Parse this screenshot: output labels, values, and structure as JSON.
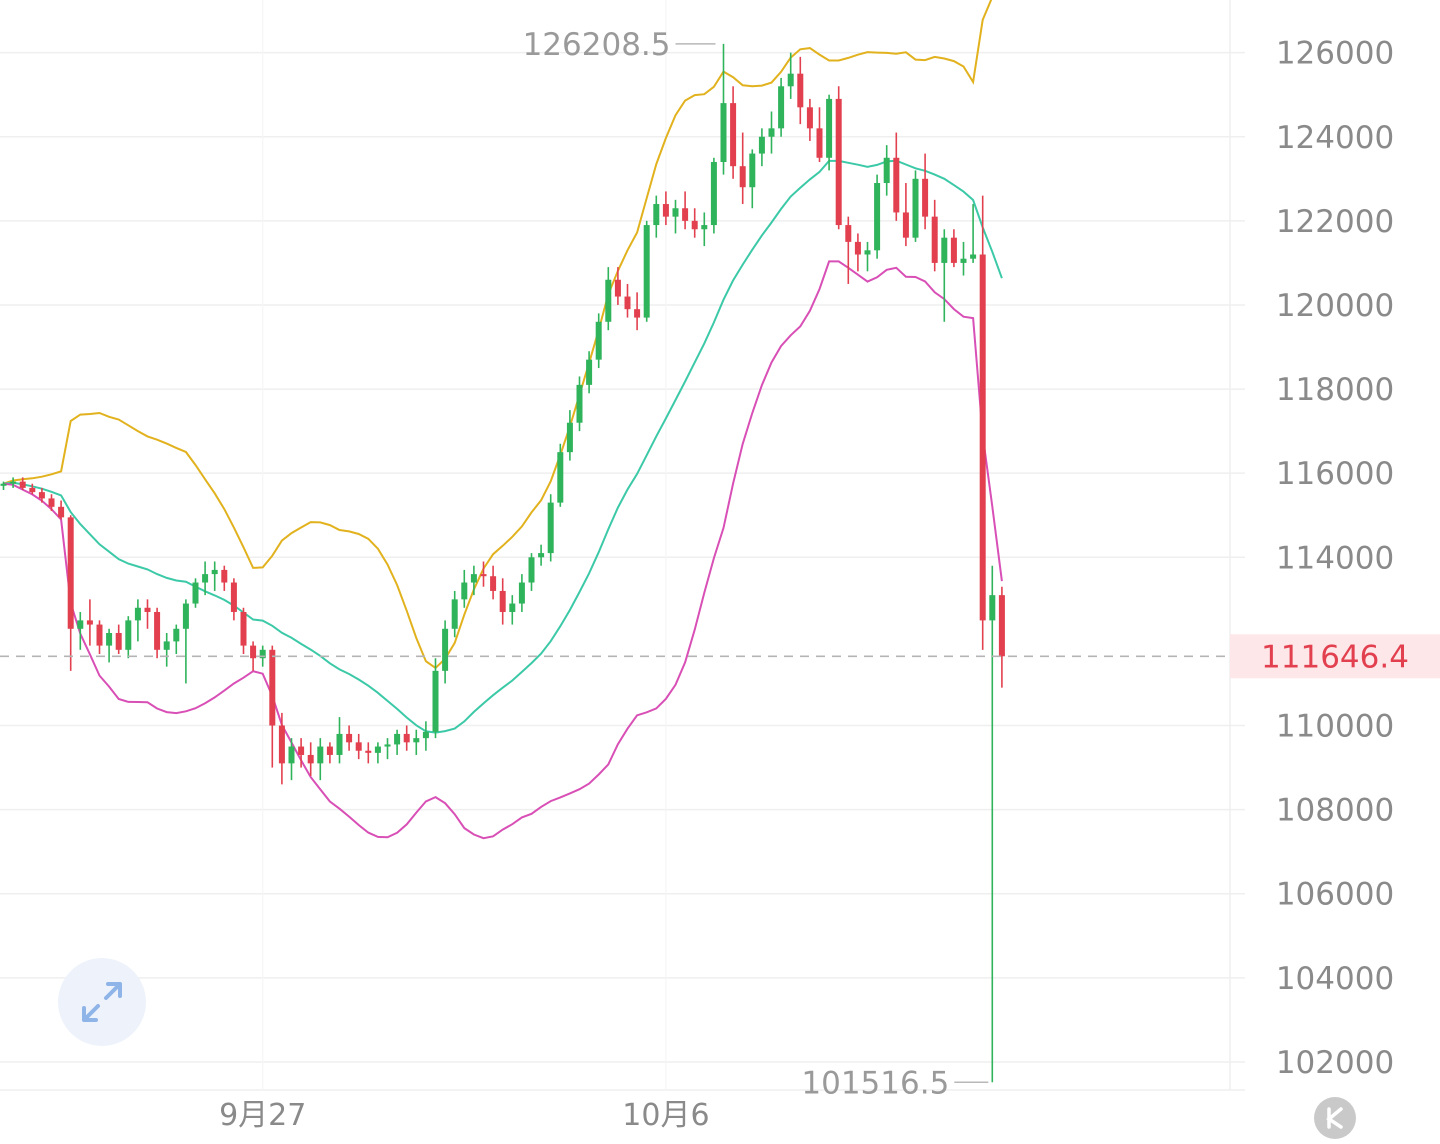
{
  "chart_data": {
    "type": "candlestick",
    "series": [
      {
        "name": "",
        "values": []
      }
    ],
    "y_range": [
      101000,
      126800
    ],
    "y_ticks": [
      "126000",
      "124000",
      "122000",
      "120000",
      "118000",
      "116000",
      "114000",
      "110000",
      "108000",
      "106000",
      "104000",
      "102000"
    ],
    "x_tick_labels": [
      {
        "label": "9月27",
        "index": 27
      },
      {
        "label": "10月6",
        "index": 69
      }
    ],
    "current_price": 111646.4,
    "high_marker": 126208.5,
    "high_marker_label": "126208.5",
    "low_marker": 101516.5,
    "low_marker_label": "101516.5",
    "current_price_label": "111646.4",
    "grid": true,
    "colors": {
      "up": "#2fb35b",
      "down": "#e2404f",
      "bb_upper": "#e2b21e",
      "bb_middle": "#3cc9a7",
      "bb_lower": "#d84fb6",
      "grid": "#efefef",
      "current_line": "#b4b4b4",
      "price_tag_bg": "#fde7e9"
    },
    "candles": [
      [
        115700,
        115800,
        115600,
        115750
      ],
      [
        115750,
        115900,
        115650,
        115800
      ],
      [
        115800,
        115900,
        115600,
        115650
      ],
      [
        115650,
        115750,
        115500,
        115550
      ],
      [
        115550,
        115650,
        115300,
        115400
      ],
      [
        115400,
        115500,
        115100,
        115200
      ],
      [
        115200,
        115350,
        114900,
        114950
      ],
      [
        114950,
        115000,
        111300,
        112300
      ],
      [
        112300,
        112700,
        111800,
        112500
      ],
      [
        112500,
        113000,
        111900,
        112400
      ],
      [
        112400,
        112500,
        111700,
        111900
      ],
      [
        111900,
        112300,
        111500,
        112200
      ],
      [
        112200,
        112400,
        111700,
        111800
      ],
      [
        111800,
        112600,
        111600,
        112500
      ],
      [
        112500,
        113000,
        112000,
        112800
      ],
      [
        112800,
        113000,
        112300,
        112700
      ],
      [
        112700,
        112800,
        111600,
        111800
      ],
      [
        111800,
        112200,
        111400,
        112000
      ],
      [
        112000,
        112400,
        111700,
        112300
      ],
      [
        112300,
        113000,
        111000,
        112900
      ],
      [
        112900,
        113500,
        112800,
        113400
      ],
      [
        113400,
        113900,
        113100,
        113600
      ],
      [
        113600,
        113900,
        113200,
        113700
      ],
      [
        113700,
        113800,
        113200,
        113400
      ],
      [
        113400,
        113500,
        112500,
        112700
      ],
      [
        112700,
        112800,
        111700,
        111900
      ],
      [
        111900,
        112000,
        111300,
        111600
      ],
      [
        111600,
        111900,
        111400,
        111800
      ],
      [
        111800,
        111900,
        109000,
        110000
      ],
      [
        110000,
        110300,
        108600,
        109100
      ],
      [
        109100,
        109700,
        108700,
        109500
      ],
      [
        109500,
        109700,
        109000,
        109300
      ],
      [
        109300,
        109600,
        108800,
        109100
      ],
      [
        109100,
        109700,
        108700,
        109500
      ],
      [
        109500,
        109600,
        109100,
        109300
      ],
      [
        109300,
        110200,
        109100,
        109800
      ],
      [
        109800,
        110000,
        109400,
        109600
      ],
      [
        109600,
        109800,
        109200,
        109400
      ],
      [
        109400,
        109600,
        109100,
        109350
      ],
      [
        109350,
        109600,
        109100,
        109500
      ],
      [
        109500,
        109700,
        109200,
        109550
      ],
      [
        109550,
        109900,
        109300,
        109800
      ],
      [
        109800,
        110000,
        109400,
        109600
      ],
      [
        109600,
        109900,
        109300,
        109700
      ],
      [
        109700,
        110100,
        109400,
        109850
      ],
      [
        109850,
        111600,
        109700,
        111300
      ],
      [
        111300,
        112500,
        111000,
        112300
      ],
      [
        112300,
        113200,
        112100,
        113000
      ],
      [
        113000,
        113700,
        112800,
        113400
      ],
      [
        113400,
        113800,
        113100,
        113600
      ],
      [
        113600,
        113900,
        113300,
        113550
      ],
      [
        113550,
        113800,
        113000,
        113200
      ],
      [
        113200,
        113500,
        112400,
        112700
      ],
      [
        112700,
        113100,
        112400,
        112900
      ],
      [
        112900,
        113600,
        112700,
        113400
      ],
      [
        113400,
        114100,
        113200,
        114000
      ],
      [
        114000,
        114300,
        113800,
        114100
      ],
      [
        114100,
        115500,
        113900,
        115300
      ],
      [
        115300,
        116700,
        115200,
        116500
      ],
      [
        116500,
        117500,
        116300,
        117200
      ],
      [
        117200,
        118300,
        117000,
        118100
      ],
      [
        118100,
        118900,
        117900,
        118700
      ],
      [
        118700,
        119800,
        118500,
        119600
      ],
      [
        119600,
        120900,
        119400,
        120600
      ],
      [
        120600,
        120900,
        120000,
        120200
      ],
      [
        120200,
        120500,
        119700,
        119900
      ],
      [
        119900,
        120300,
        119400,
        119700
      ],
      [
        119700,
        122000,
        119600,
        121900
      ],
      [
        121900,
        122600,
        121600,
        122400
      ],
      [
        122400,
        122700,
        121900,
        122100
      ],
      [
        122100,
        122500,
        121700,
        122300
      ],
      [
        122300,
        122700,
        121800,
        122000
      ],
      [
        122000,
        122300,
        121600,
        121800
      ],
      [
        121800,
        122200,
        121400,
        121900
      ],
      [
        121900,
        123500,
        121700,
        123400
      ],
      [
        123400,
        126208.5,
        123100,
        124800
      ],
      [
        124800,
        125200,
        123000,
        123300
      ],
      [
        123300,
        124100,
        122400,
        122800
      ],
      [
        122800,
        123700,
        122300,
        123600
      ],
      [
        123600,
        124200,
        123300,
        124000
      ],
      [
        124000,
        124600,
        123600,
        124200
      ],
      [
        124200,
        125400,
        124000,
        125200
      ],
      [
        125200,
        126000,
        124900,
        125500
      ],
      [
        125500,
        125900,
        124300,
        124700
      ],
      [
        124700,
        124900,
        123900,
        124200
      ],
      [
        124200,
        124700,
        123400,
        123500
      ],
      [
        123500,
        125000,
        123200,
        124900
      ],
      [
        124900,
        125200,
        121800,
        121900
      ],
      [
        121900,
        122100,
        120500,
        121500
      ],
      [
        121500,
        121700,
        120800,
        121200
      ],
      [
        121200,
        121500,
        120800,
        121300
      ],
      [
        121300,
        123100,
        121100,
        122900
      ],
      [
        122900,
        123800,
        122600,
        123500
      ],
      [
        123500,
        124100,
        122000,
        122200
      ],
      [
        122200,
        122900,
        121400,
        121600
      ],
      [
        121600,
        123200,
        121500,
        123000
      ],
      [
        123000,
        123600,
        121800,
        122100
      ],
      [
        122100,
        122500,
        120800,
        121000
      ],
      [
        121000,
        121800,
        119600,
        121600
      ],
      [
        121600,
        121800,
        120900,
        121000
      ],
      [
        121000,
        121500,
        120700,
        121100
      ],
      [
        121100,
        122400,
        121000,
        121200
      ],
      [
        121200,
        122600,
        111800,
        112500
      ],
      [
        112500,
        113800,
        101516.5,
        113100
      ],
      [
        113100,
        113300,
        110900,
        111646.4
      ]
    ]
  }
}
